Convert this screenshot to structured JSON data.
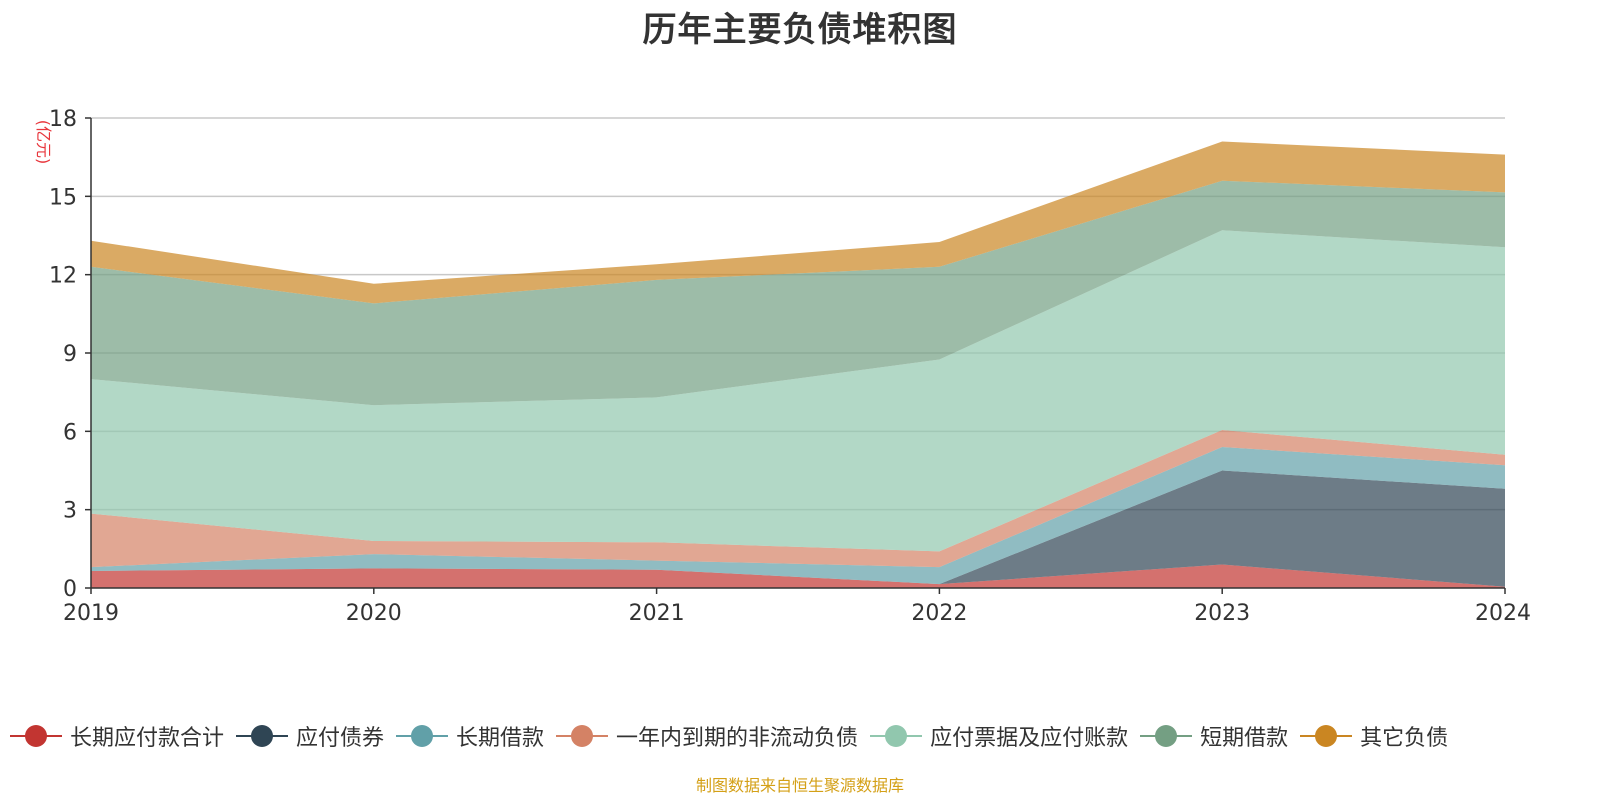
{
  "chart_data": {
    "type": "area",
    "stacked": true,
    "title": "历年主要负债堆积图",
    "ylabel": "(亿元)",
    "xlabel": "",
    "x": [
      "2019",
      "2020",
      "2021",
      "2022",
      "2023",
      "2024"
    ],
    "ylim": [
      0,
      18
    ],
    "yticks": [
      0,
      3,
      6,
      9,
      12,
      15,
      18
    ],
    "grid": true,
    "legend_position": "bottom",
    "series": [
      {
        "name": "长期应付款合计",
        "color": "#c23531",
        "values": [
          0.65,
          0.75,
          0.7,
          0.15,
          0.9,
          0.05
        ]
      },
      {
        "name": "应付债券",
        "color": "#2f4554",
        "values": [
          0,
          0,
          0,
          0,
          3.6,
          3.75
        ]
      },
      {
        "name": "长期借款",
        "color": "#61a0a8",
        "values": [
          0.15,
          0.55,
          0.35,
          0.65,
          0.9,
          0.9
        ]
      },
      {
        "name": "一年内到期的非流动负债",
        "color": "#d48265",
        "values": [
          2.05,
          0.5,
          0.7,
          0.6,
          0.65,
          0.4
        ]
      },
      {
        "name": "应付票据及应付账款",
        "color": "#91c7ae",
        "values": [
          5.15,
          5.2,
          5.55,
          7.35,
          7.65,
          7.95
        ]
      },
      {
        "name": "短期借款",
        "color": "#749f83",
        "values": [
          4.3,
          3.9,
          4.5,
          3.55,
          1.9,
          2.1
        ]
      },
      {
        "name": "其它负债",
        "color": "#ca8622",
        "values": [
          1.0,
          0.75,
          0.6,
          0.95,
          1.5,
          1.45
        ]
      }
    ]
  },
  "footer": {
    "source": "制图数据来自恒生聚源数据库"
  }
}
